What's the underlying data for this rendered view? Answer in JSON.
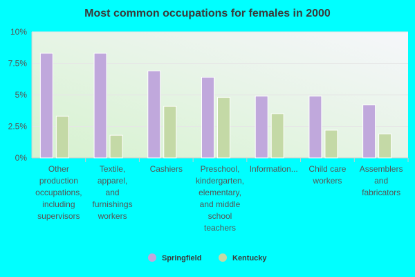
{
  "chart_data": {
    "type": "bar",
    "title": "Most common occupations for females in 2000",
    "xlabel": "",
    "ylabel": "",
    "ylim": [
      0,
      10
    ],
    "yticks": [
      {
        "value": 0,
        "label": "0%"
      },
      {
        "value": 2.5,
        "label": "2.5%"
      },
      {
        "value": 5,
        "label": "5%"
      },
      {
        "value": 7.5,
        "label": "7.5%"
      },
      {
        "value": 10,
        "label": "10%"
      }
    ],
    "categories": [
      "Other production occupations, including supervisors",
      "Textile, apparel, and furnishings workers",
      "Cashiers",
      "Preschool, kindergarten, elementary, and middle school teachers",
      "Information...",
      "Child care workers",
      "Assemblers and fabricators"
    ],
    "category_label_lines": [
      [
        "Other",
        "production",
        "occupations,",
        "including",
        "supervisors"
      ],
      [
        "Textile,",
        "apparel,",
        "and",
        "furnishings",
        "workers"
      ],
      [
        "Cashiers"
      ],
      [
        "Preschool,",
        "kindergarten,",
        "elementary,",
        "and middle",
        "school",
        "teachers"
      ],
      [
        "Information..."
      ],
      [
        "Child care",
        "workers"
      ],
      [
        "Assemblers",
        "and",
        "fabricators"
      ]
    ],
    "series": [
      {
        "name": "Springfield",
        "color": "#C0A8DC",
        "values": [
          8.3,
          8.3,
          6.9,
          6.4,
          4.9,
          4.9,
          4.2
        ]
      },
      {
        "name": "Kentucky",
        "color": "#C4D9A6",
        "values": [
          3.3,
          1.8,
          4.1,
          4.8,
          3.5,
          2.2,
          1.9
        ]
      }
    ],
    "grid": true,
    "legend_position": "bottom-center",
    "colors": {
      "page_background": "#00FFFF",
      "plot_gradient_left": "#D6F2CF",
      "plot_gradient_right": "#F6F6FB",
      "axis": "#cccccc",
      "gridline": "#e6e6e6"
    }
  }
}
